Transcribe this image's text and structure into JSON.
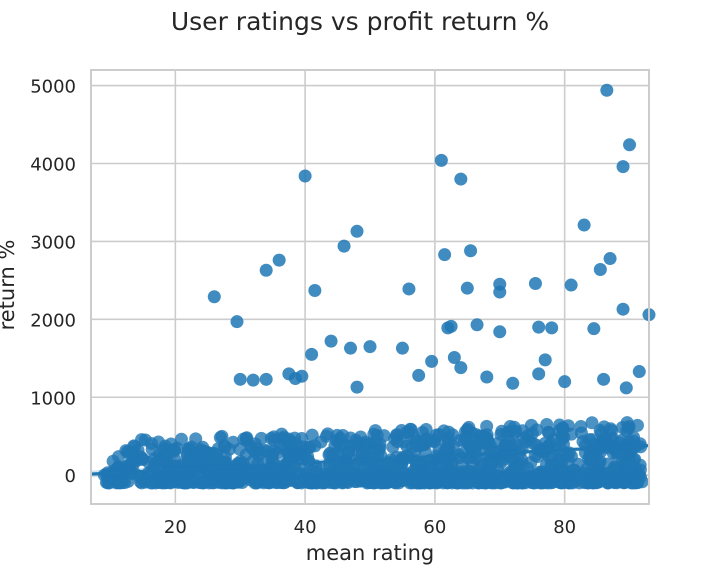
{
  "chart_data": {
    "type": "scatter",
    "title": "User ratings vs profit return %",
    "xlabel": "mean rating",
    "ylabel": "return %",
    "xlim": [
      7,
      93
    ],
    "ylim": [
      -370,
      5200
    ],
    "xticks": [
      20,
      40,
      60,
      80
    ],
    "yticks": [
      0,
      1000,
      2000,
      3000,
      4000,
      5000
    ],
    "grid": true,
    "point_color": "#1f77b4",
    "regression": {
      "x": [
        7,
        93
      ],
      "y": [
        15,
        380
      ],
      "ci_lower": [
        -30,
        350
      ],
      "ci_upper": [
        60,
        410
      ]
    },
    "outliers": [
      [
        86.5,
        4940
      ],
      [
        90,
        4240
      ],
      [
        61,
        4040
      ],
      [
        89,
        3960
      ],
      [
        40,
        3840
      ],
      [
        64,
        3800
      ],
      [
        83,
        3210
      ],
      [
        48,
        3130
      ],
      [
        46,
        2940
      ],
      [
        65.5,
        2880
      ],
      [
        61.5,
        2830
      ],
      [
        36,
        2760
      ],
      [
        87,
        2780
      ],
      [
        34,
        2630
      ],
      [
        85.5,
        2640
      ],
      [
        70,
        2450
      ],
      [
        75.5,
        2460
      ],
      [
        81,
        2440
      ],
      [
        65,
        2400
      ],
      [
        56,
        2390
      ],
      [
        41.5,
        2370
      ],
      [
        70,
        2350
      ],
      [
        26,
        2290
      ],
      [
        89,
        2130
      ],
      [
        93,
        2060
      ],
      [
        29.5,
        1970
      ],
      [
        62,
        1890
      ],
      [
        66.5,
        1930
      ],
      [
        70,
        1840
      ],
      [
        76,
        1900
      ],
      [
        78,
        1890
      ],
      [
        84.5,
        1880
      ],
      [
        62.5,
        1910
      ],
      [
        44,
        1720
      ],
      [
        47,
        1630
      ],
      [
        50,
        1650
      ],
      [
        55,
        1630
      ],
      [
        41,
        1550
      ],
      [
        63,
        1510
      ],
      [
        59.5,
        1460
      ],
      [
        64,
        1380
      ],
      [
        77,
        1480
      ],
      [
        76,
        1300
      ],
      [
        91.5,
        1330
      ],
      [
        37.5,
        1300
      ],
      [
        39.5,
        1270
      ],
      [
        38.5,
        1240
      ],
      [
        30,
        1230
      ],
      [
        32,
        1220
      ],
      [
        34,
        1230
      ],
      [
        57.5,
        1280
      ],
      [
        68,
        1260
      ],
      [
        72,
        1180
      ],
      [
        80,
        1200
      ],
      [
        86,
        1230
      ],
      [
        89.5,
        1120
      ],
      [
        48,
        1130
      ]
    ],
    "cluster": {
      "x_range": [
        9,
        92
      ],
      "count": 1250,
      "y_base": -100,
      "typical_max_low_x": 450,
      "typical_max_high_x": 700
    }
  }
}
